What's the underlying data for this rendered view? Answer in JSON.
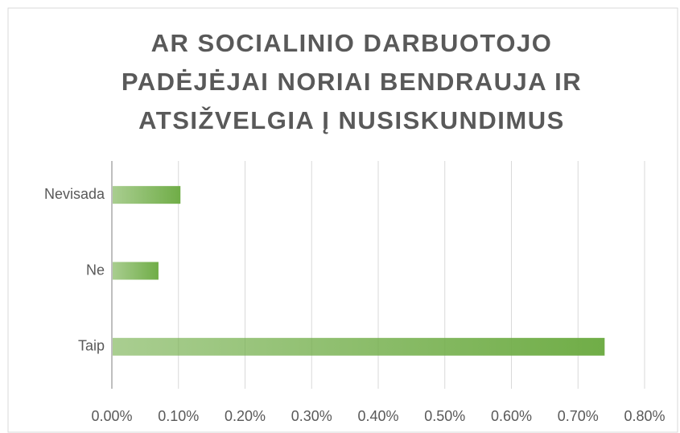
{
  "chart_data": {
    "type": "bar",
    "orientation": "horizontal",
    "title": [
      "AR SOCIALINIO DARBUOTOJO",
      "PADĖJĖJAI NORIAI BENDRAUJA IR",
      "ATSIŽVELGIA Į NUSISKUNDIMUS"
    ],
    "categories": [
      "Taip",
      "Ne",
      "Nevisada"
    ],
    "values": [
      0.74,
      0.07,
      0.103
    ],
    "color": "#70ad47",
    "xlim": [
      0,
      0.8
    ],
    "xticks": [
      {
        "value": 0,
        "label": "0.00%"
      },
      {
        "value": 0.1,
        "label": "0.10%"
      },
      {
        "value": 0.2,
        "label": "0.20%"
      },
      {
        "value": 0.3,
        "label": "0.30%"
      },
      {
        "value": 0.4,
        "label": "0.40%"
      },
      {
        "value": 0.5,
        "label": "0.50%"
      },
      {
        "value": 0.6,
        "label": "0.60%"
      },
      {
        "value": 0.7,
        "label": "0.70%"
      },
      {
        "value": 0.8,
        "label": "0.80%"
      }
    ],
    "grid": true
  }
}
